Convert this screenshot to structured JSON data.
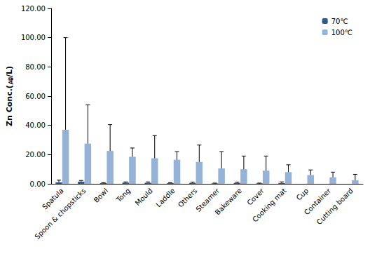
{
  "chart_data": {
    "type": "bar",
    "y_label": "Zn Conc.(㎍/L)",
    "categories": [
      "Spatula",
      "Spoon & chopsticks",
      "Bowl",
      "Tong",
      "Mould",
      "Laddle",
      "Others",
      "Steamer",
      "Bakeware",
      "Cover",
      "Cooking mat",
      "Cup",
      "Container",
      "Cutting board"
    ],
    "series": [
      {
        "name": "70℃",
        "color": "#2c5c8a",
        "values": [
          1.0,
          1.5,
          0.5,
          0.8,
          0.7,
          0.5,
          0.6,
          0.3,
          0.6,
          0.3,
          0.5,
          0,
          0,
          0
        ],
        "errors": [
          1.5,
          0.8,
          0.3,
          0.5,
          0.6,
          0.3,
          0.5,
          0.2,
          0.5,
          0.2,
          0.8,
          0,
          0,
          0
        ]
      },
      {
        "name": "100℃",
        "color": "#95b3d7",
        "values": [
          37,
          27.5,
          22.5,
          18.5,
          17.5,
          16.5,
          15,
          10.5,
          10,
          9,
          8,
          6,
          4.5,
          2.5
        ],
        "errors": [
          63,
          26.5,
          18,
          6,
          15.5,
          5.5,
          11.5,
          11.5,
          9,
          10,
          5,
          3.5,
          3.5,
          4
        ]
      }
    ],
    "ylim": [
      0,
      120
    ],
    "yticks": [
      {
        "value": 0,
        "label": "0.00"
      },
      {
        "value": 20,
        "label": "20.00"
      },
      {
        "value": 40,
        "label": "40.00"
      },
      {
        "value": 60,
        "label": "60.00"
      },
      {
        "value": 80,
        "label": "80.00"
      },
      {
        "value": 100,
        "label": "100.00"
      },
      {
        "value": 120,
        "label": "120.00"
      }
    ],
    "grid": false,
    "legend": "upper right"
  }
}
